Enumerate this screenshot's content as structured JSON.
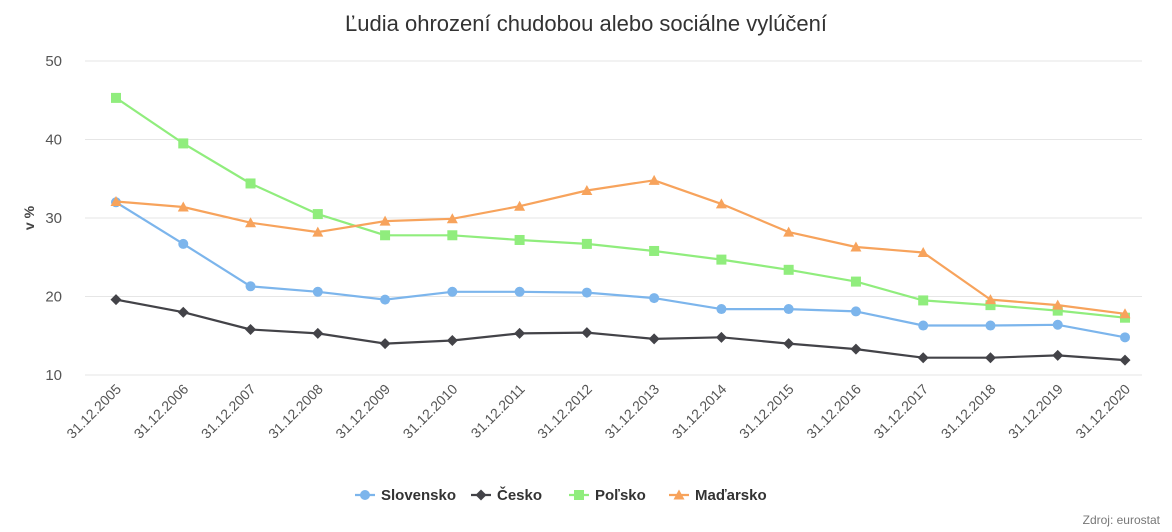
{
  "chart_data": {
    "type": "line",
    "title": "Ľudia ohrození chudobou alebo sociálne vylúčení",
    "ylabel": "v %",
    "xlabel": "",
    "ylim": [
      10,
      50
    ],
    "yticks": [
      "10",
      "20",
      "30",
      "40",
      "50"
    ],
    "categories": [
      "31.12.2005",
      "31.12.2006",
      "31.12.2007",
      "31.12.2008",
      "31.12.2009",
      "31.12.2010",
      "31.12.2011",
      "31.12.2012",
      "31.12.2013",
      "31.12.2014",
      "31.12.2015",
      "31.12.2016",
      "31.12.2017",
      "31.12.2018",
      "31.12.2019",
      "31.12.2020"
    ],
    "grid": true,
    "legend_position": "bottom-center",
    "credit": "Zdroj: eurostat",
    "series": [
      {
        "name": "Slovensko",
        "color": "#7cb5ec",
        "marker": "circle",
        "values": [
          32.0,
          26.7,
          21.3,
          20.6,
          19.6,
          20.6,
          20.6,
          20.5,
          19.8,
          18.4,
          18.4,
          18.1,
          16.3,
          16.3,
          16.4,
          14.8
        ]
      },
      {
        "name": "Česko",
        "color": "#434348",
        "marker": "diamond",
        "values": [
          19.6,
          18.0,
          15.8,
          15.3,
          14.0,
          14.4,
          15.3,
          15.4,
          14.6,
          14.8,
          14.0,
          13.3,
          12.2,
          12.2,
          12.5,
          11.9
        ]
      },
      {
        "name": "Poľsko",
        "color": "#90ed7d",
        "marker": "square",
        "values": [
          45.3,
          39.5,
          34.4,
          30.5,
          27.8,
          27.8,
          27.2,
          26.7,
          25.8,
          24.7,
          23.4,
          21.9,
          19.5,
          18.9,
          18.2,
          17.3
        ]
      },
      {
        "name": "Maďarsko",
        "color": "#f7a35c",
        "marker": "triangle",
        "values": [
          32.1,
          31.4,
          29.4,
          28.2,
          29.6,
          29.9,
          31.5,
          33.5,
          34.8,
          31.8,
          28.2,
          26.3,
          25.6,
          19.6,
          18.9,
          17.8
        ]
      }
    ]
  }
}
